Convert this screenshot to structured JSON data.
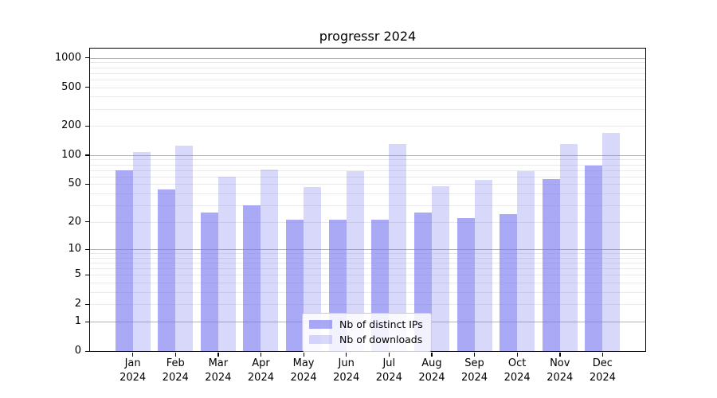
{
  "chart_data": {
    "type": "bar",
    "title": "progressr 2024",
    "categories": [
      "Jan",
      "Feb",
      "Mar",
      "Apr",
      "May",
      "Jun",
      "Jul",
      "Aug",
      "Sep",
      "Oct",
      "Nov",
      "Dec"
    ],
    "category_year": "2024",
    "series": [
      {
        "name": "Nb of distinct IPs",
        "color": "rgba(116,116,240,0.62)",
        "values": [
          70,
          44,
          25,
          30,
          21,
          21,
          21,
          25,
          22,
          24,
          57,
          78
        ]
      },
      {
        "name": "Nb of downloads",
        "color": "rgba(116,116,240,0.28)",
        "values": [
          107,
          125,
          60,
          71,
          47,
          68,
          130,
          48,
          55,
          68,
          130,
          170
        ]
      }
    ],
    "xlabel": "",
    "ylabel": "",
    "yscale": "log1p",
    "ylim": [
      0,
      1250
    ],
    "y_ticks": [
      0,
      1,
      2,
      5,
      10,
      20,
      50,
      100,
      200,
      500,
      1000
    ],
    "y_minor_ticks": [
      3,
      4,
      6,
      7,
      8,
      9,
      30,
      40,
      60,
      70,
      80,
      90,
      300,
      400,
      600,
      700,
      800,
      900
    ],
    "grid": true,
    "legend": {
      "position": "lower center"
    },
    "colors": {
      "major_grid": "#b2b2b2",
      "minor_grid": "#e9e9e9",
      "spine": "#000000",
      "background": "#ffffff"
    }
  }
}
